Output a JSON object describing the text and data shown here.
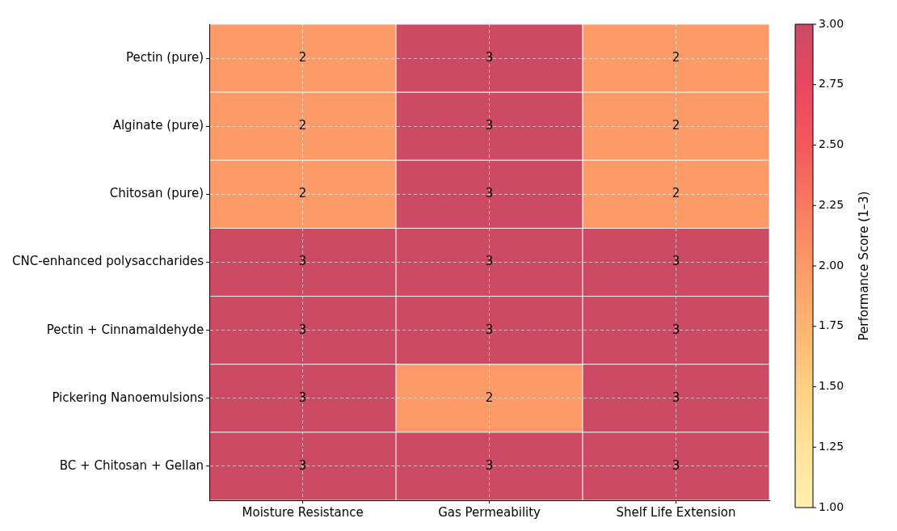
{
  "chart_data": {
    "type": "heatmap",
    "categories": [
      "Moisture Resistance",
      "Gas Permeability",
      "Shelf Life Extension"
    ],
    "y_categories": [
      "Pectin (pure)",
      "Alginate (pure)",
      "Chitosan (pure)",
      "CNC-enhanced polysaccharides",
      "Pectin + Cinnamaldehyde",
      "Pickering Nanoemulsions",
      "BC + Chitosan + Gellan"
    ],
    "cells": [
      [
        2,
        3,
        2
      ],
      [
        2,
        3,
        2
      ],
      [
        2,
        3,
        2
      ],
      [
        3,
        3,
        3
      ],
      [
        3,
        3,
        3
      ],
      [
        3,
        2,
        3
      ],
      [
        3,
        3,
        3
      ]
    ],
    "clim": [
      1,
      3
    ],
    "cticks": [
      {
        "value": 1,
        "label": "1.00"
      },
      {
        "value": 1.25,
        "label": "1.25"
      },
      {
        "value": 1.5,
        "label": "1.50"
      },
      {
        "value": 1.75,
        "label": "1.75"
      },
      {
        "value": 2,
        "label": "2.00"
      },
      {
        "value": 2.25,
        "label": "2.25"
      },
      {
        "value": 2.5,
        "label": "2.50"
      },
      {
        "value": 2.75,
        "label": "2.75"
      },
      {
        "value": 3,
        "label": "3.00"
      }
    ],
    "clabel": "Performance Score (1–3)",
    "data_labels": true,
    "grid": true
  }
}
